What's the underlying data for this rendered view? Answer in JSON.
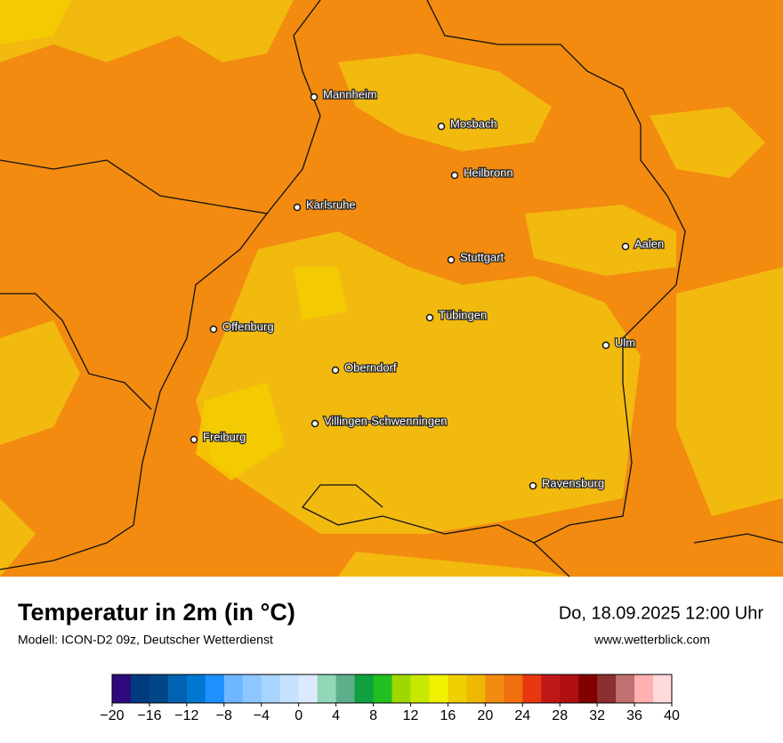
{
  "header": {
    "title": "Temperatur in 2m (in °C)",
    "subtitle": "Modell: ICON-D2 09z, Deutscher Wetterdienst",
    "date": "Do, 18.09.2025 12:00 Uhr",
    "website": "www.wetterblick.com"
  },
  "cities": [
    "Mannheim",
    "Mosbach",
    "Heilbronn",
    "Karlsruhe",
    "Aalen",
    "Stuttgart",
    "Tübingen",
    "Offenburg",
    "Ulm",
    "Oberndorf",
    "Villingen-Schwenningen",
    "Freiburg",
    "Ravensburg"
  ],
  "colorbar": {
    "range": [
      -20,
      40
    ],
    "colors": [
      "#2e0a7c",
      "#003a7f",
      "#00478a",
      "#0062b0",
      "#0078d2",
      "#1e90ff",
      "#6eb6ff",
      "#8ec6ff",
      "#a8d4ff",
      "#c6e2ff",
      "#dbeaff",
      "#90d8b8",
      "#5fae8c",
      "#10a040",
      "#20c020",
      "#9ed800",
      "#c8e800",
      "#f0f000",
      "#f0d000",
      "#f0b800",
      "#f08c10",
      "#f07010",
      "#e83810",
      "#c01818",
      "#b01010",
      "#800000",
      "#8a3030",
      "#c07070",
      "#ffb0b0",
      "#ffdada"
    ],
    "ticks": [
      {
        "value": -20,
        "label": "−20"
      },
      {
        "value": -16,
        "label": "−16"
      },
      {
        "value": -12,
        "label": "−12"
      },
      {
        "value": -8,
        "label": "−8"
      },
      {
        "value": -4,
        "label": "−4"
      },
      0,
      4,
      8,
      12,
      16,
      20,
      24,
      28,
      32,
      36,
      40
    ]
  }
}
